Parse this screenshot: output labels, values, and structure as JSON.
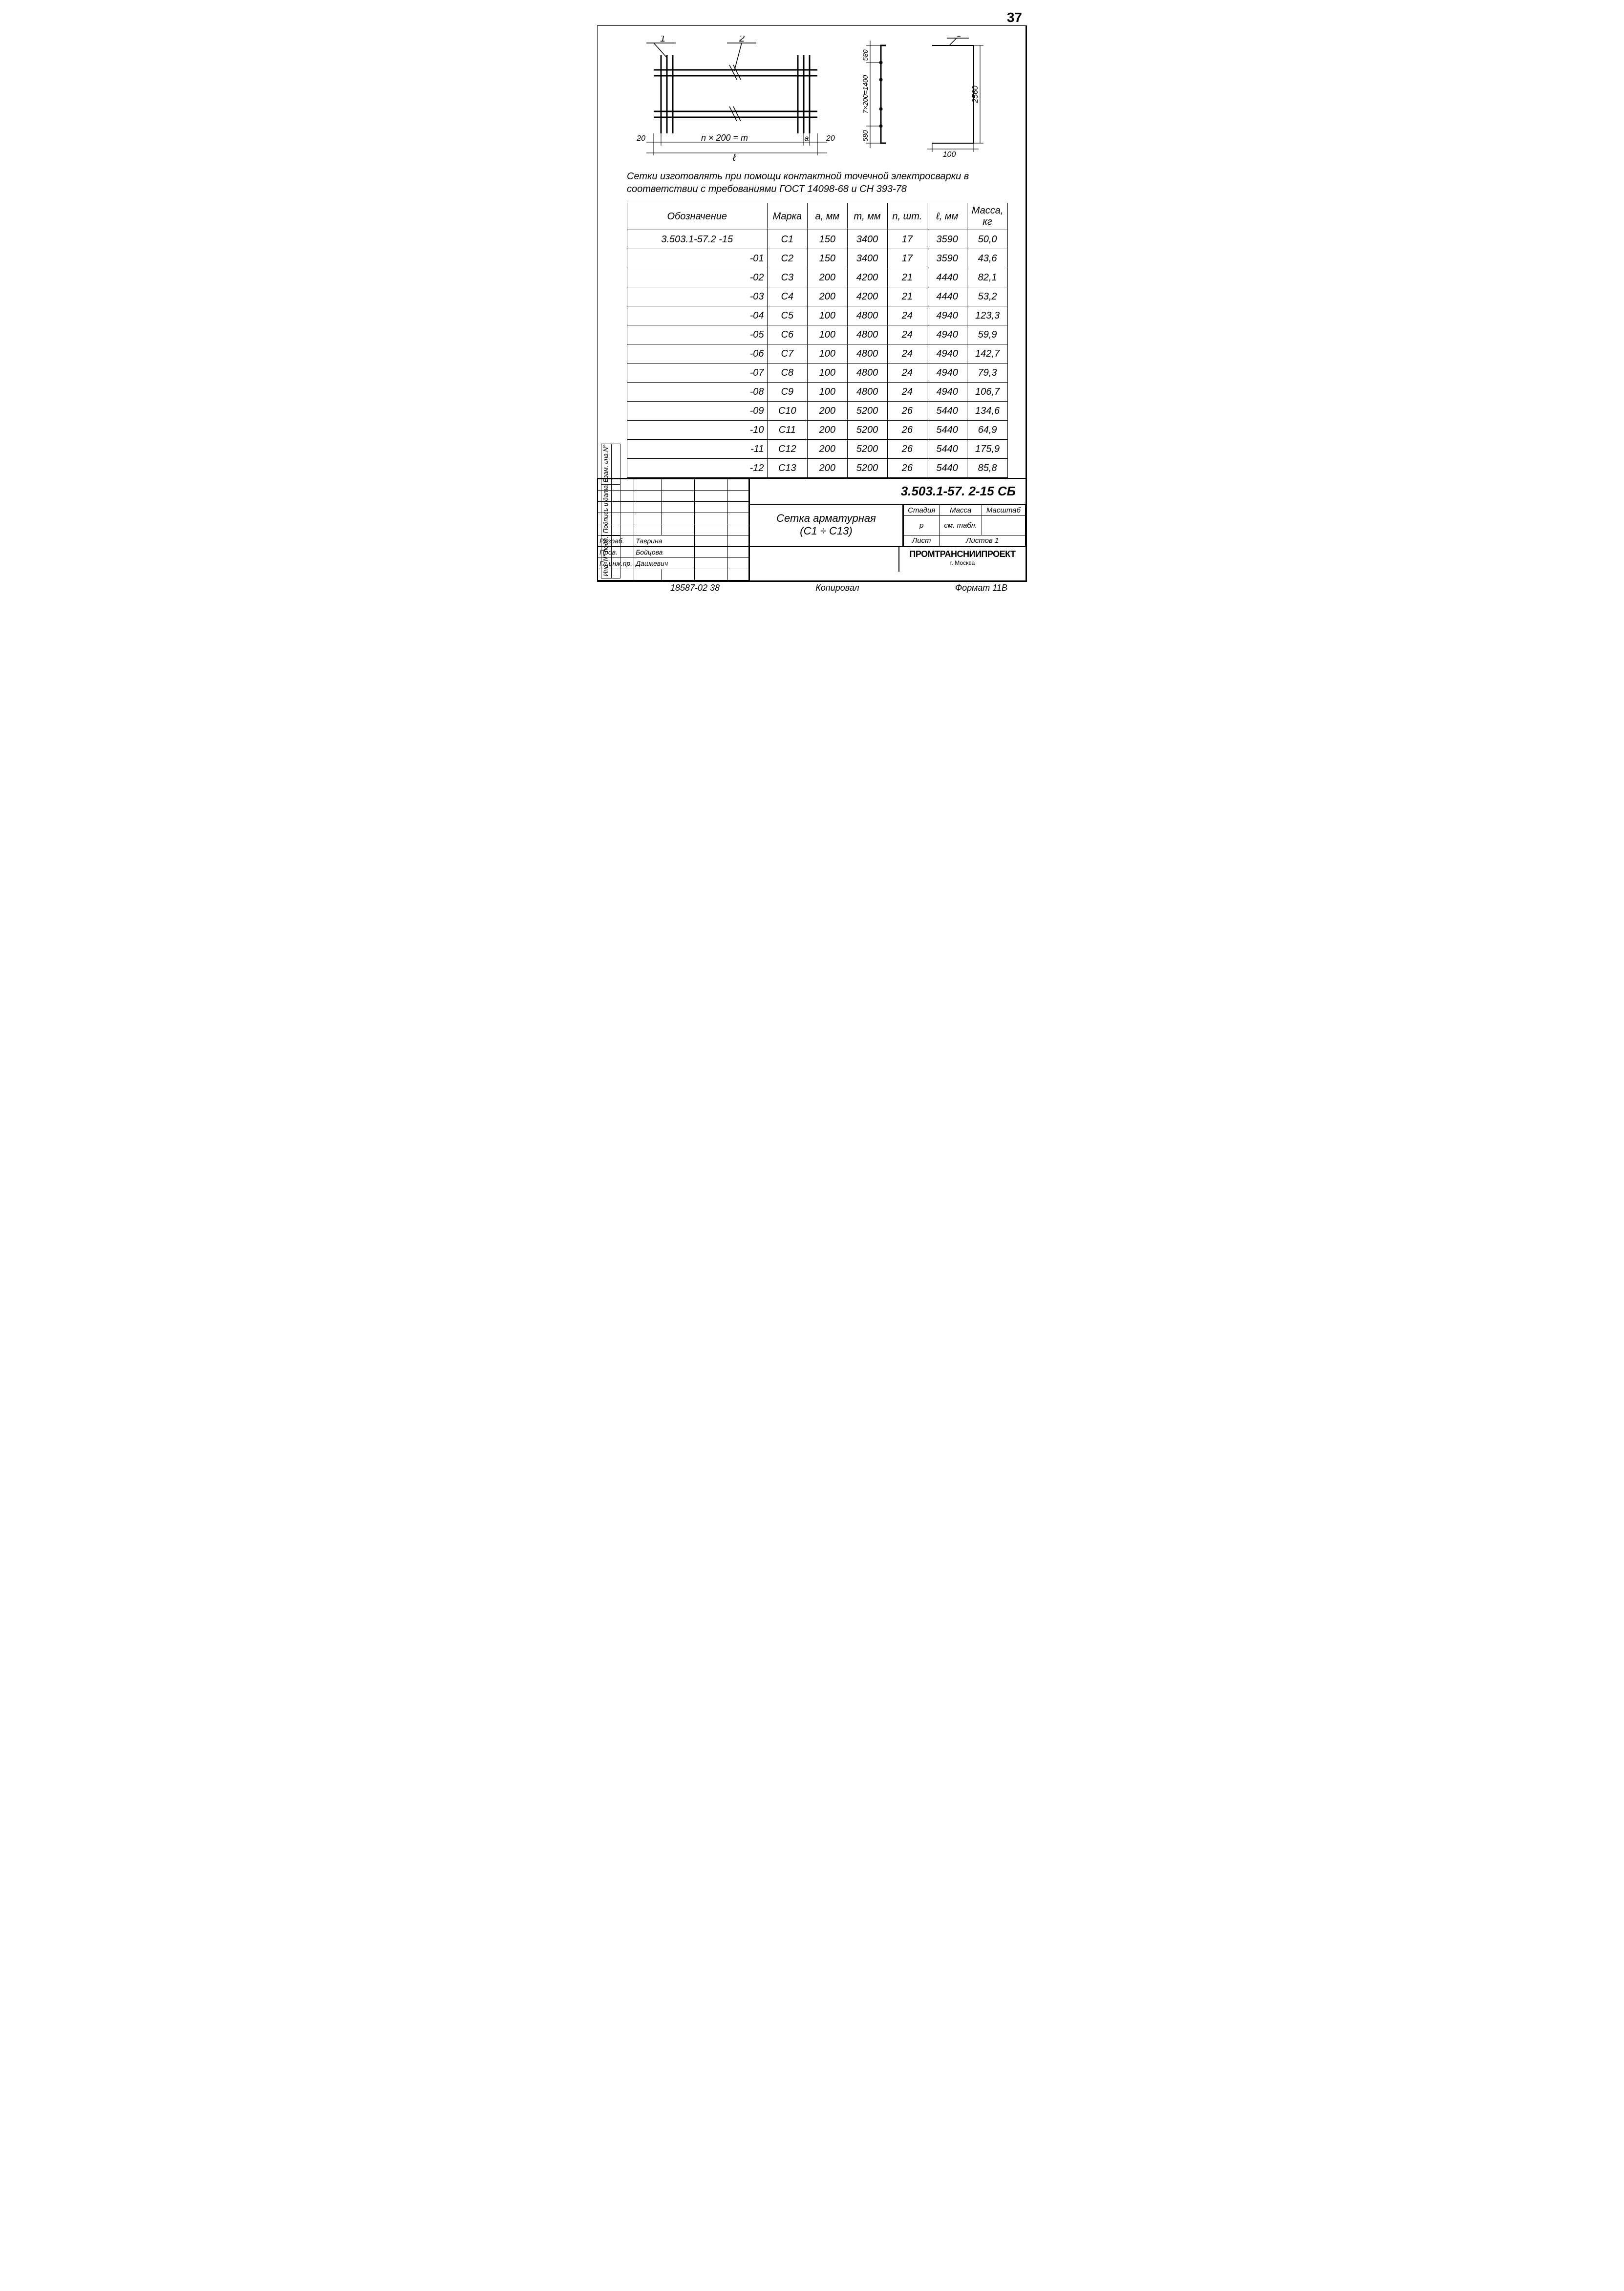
{
  "page_number": "37",
  "diagram_main": {
    "callout1": "1",
    "callout2": "2",
    "dim_left": "20",
    "dim_center": "n × 200 = m",
    "dim_a": "a",
    "dim_right": "20",
    "dim_bottom": "ℓ"
  },
  "diagram_side": {
    "dim_top": "580",
    "dim_mid": "7×200=1400",
    "dim_bot": "580",
    "callout": "1",
    "dim_h": "2560",
    "dim_w": "100"
  },
  "note_text": "Сетки изготовлять при помощи контактной точечной электросварки в соответствии с требованиями ГОСТ 14098-68 и СН 393-78",
  "table": {
    "headers": [
      "Обозначение",
      "Марка",
      "a, мм",
      "m, мм",
      "n, шт.",
      "ℓ, мм",
      "Масса, кг"
    ],
    "rows": [
      [
        "3.503.1-57.2 -15",
        "С1",
        "150",
        "3400",
        "17",
        "3590",
        "50,0"
      ],
      [
        "-01",
        "С2",
        "150",
        "3400",
        "17",
        "3590",
        "43,6"
      ],
      [
        "-02",
        "С3",
        "200",
        "4200",
        "21",
        "4440",
        "82,1"
      ],
      [
        "-03",
        "С4",
        "200",
        "4200",
        "21",
        "4440",
        "53,2"
      ],
      [
        "-04",
        "С5",
        "100",
        "4800",
        "24",
        "4940",
        "123,3"
      ],
      [
        "-05",
        "С6",
        "100",
        "4800",
        "24",
        "4940",
        "59,9"
      ],
      [
        "-06",
        "С7",
        "100",
        "4800",
        "24",
        "4940",
        "142,7"
      ],
      [
        "-07",
        "С8",
        "100",
        "4800",
        "24",
        "4940",
        "79,3"
      ],
      [
        "-08",
        "С9",
        "100",
        "4800",
        "24",
        "4940",
        "106,7"
      ],
      [
        "-09",
        "С10",
        "200",
        "5200",
        "26",
        "5440",
        "134,6"
      ],
      [
        "-10",
        "С11",
        "200",
        "5200",
        "26",
        "5440",
        "64,9"
      ],
      [
        "-11",
        "С12",
        "200",
        "5200",
        "26",
        "5440",
        "175,9"
      ],
      [
        "-12",
        "С13",
        "200",
        "5200",
        "26",
        "5440",
        "85,8"
      ]
    ]
  },
  "titleblock": {
    "doc_code": "3.503.1-57. 2-15 СБ",
    "title": "Сетка арматурная",
    "subtitle": "(С1 ÷ С13)",
    "meta": {
      "h1": "Стадия",
      "h2": "Масса",
      "h3": "Масштаб",
      "stage": "р",
      "mass": "см. табл.",
      "scale": "",
      "sheet_l": "Лист",
      "sheet_r": "Листов 1"
    },
    "org": "ПРОМТРАНСНИИПРОЕКТ",
    "city": "г. Москва",
    "roles": [
      {
        "role": "Разраб.",
        "name": "Таврина"
      },
      {
        "role": "Пров.",
        "name": "Бойцова"
      },
      {
        "role": "Гл.инж.пр.",
        "name": "Дашкевич"
      }
    ]
  },
  "side_labels": [
    "Инв. N° подл.",
    "Подпись и дата",
    "Взам. инв.N°"
  ],
  "footer": {
    "left": "18587-02  38",
    "center": "Копировал",
    "right": "Формат 11В"
  }
}
